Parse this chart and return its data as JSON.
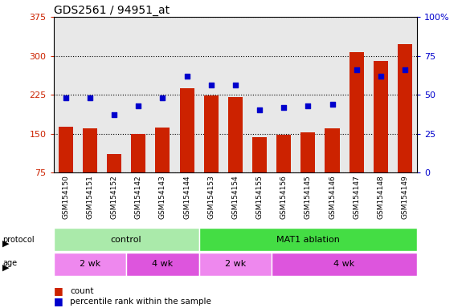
{
  "title": "GDS2561 / 94951_at",
  "samples": [
    "GSM154150",
    "GSM154151",
    "GSM154152",
    "GSM154142",
    "GSM154143",
    "GSM154144",
    "GSM154153",
    "GSM154154",
    "GSM154155",
    "GSM154156",
    "GSM154145",
    "GSM154146",
    "GSM154147",
    "GSM154148",
    "GSM154149"
  ],
  "counts": [
    163,
    160,
    110,
    150,
    162,
    238,
    224,
    220,
    143,
    147,
    152,
    160,
    307,
    290,
    323
  ],
  "percentiles": [
    48,
    48,
    37,
    43,
    48,
    62,
    56,
    56,
    40,
    42,
    43,
    44,
    66,
    62,
    66
  ],
  "ylim_left": [
    75,
    375
  ],
  "ylim_right": [
    0,
    100
  ],
  "yticks_left": [
    75,
    150,
    225,
    300,
    375
  ],
  "yticks_right": [
    0,
    25,
    50,
    75,
    100
  ],
  "bar_color": "#cc2200",
  "dot_color": "#0000cc",
  "grid_color": "#000000",
  "title_fontsize": 10,
  "protocol_groups": [
    {
      "label": "control",
      "start": 0,
      "end": 6,
      "color": "#aaeaaa"
    },
    {
      "label": "MAT1 ablation",
      "start": 6,
      "end": 15,
      "color": "#44dd44"
    }
  ],
  "age_groups": [
    {
      "label": "2 wk",
      "start": 0,
      "end": 3,
      "color": "#ee88ee"
    },
    {
      "label": "4 wk",
      "start": 3,
      "end": 6,
      "color": "#dd55dd"
    },
    {
      "label": "2 wk",
      "start": 6,
      "end": 9,
      "color": "#ee88ee"
    },
    {
      "label": "4 wk",
      "start": 9,
      "end": 15,
      "color": "#dd55dd"
    }
  ],
  "bar_color_hex": "#cc2200",
  "dot_color_hex": "#0000cc",
  "bg_plot": "#e8e8e8",
  "bg_xticklabel": "#b8b8b8",
  "fig_width": 5.8,
  "fig_height": 3.84,
  "dpi": 100
}
